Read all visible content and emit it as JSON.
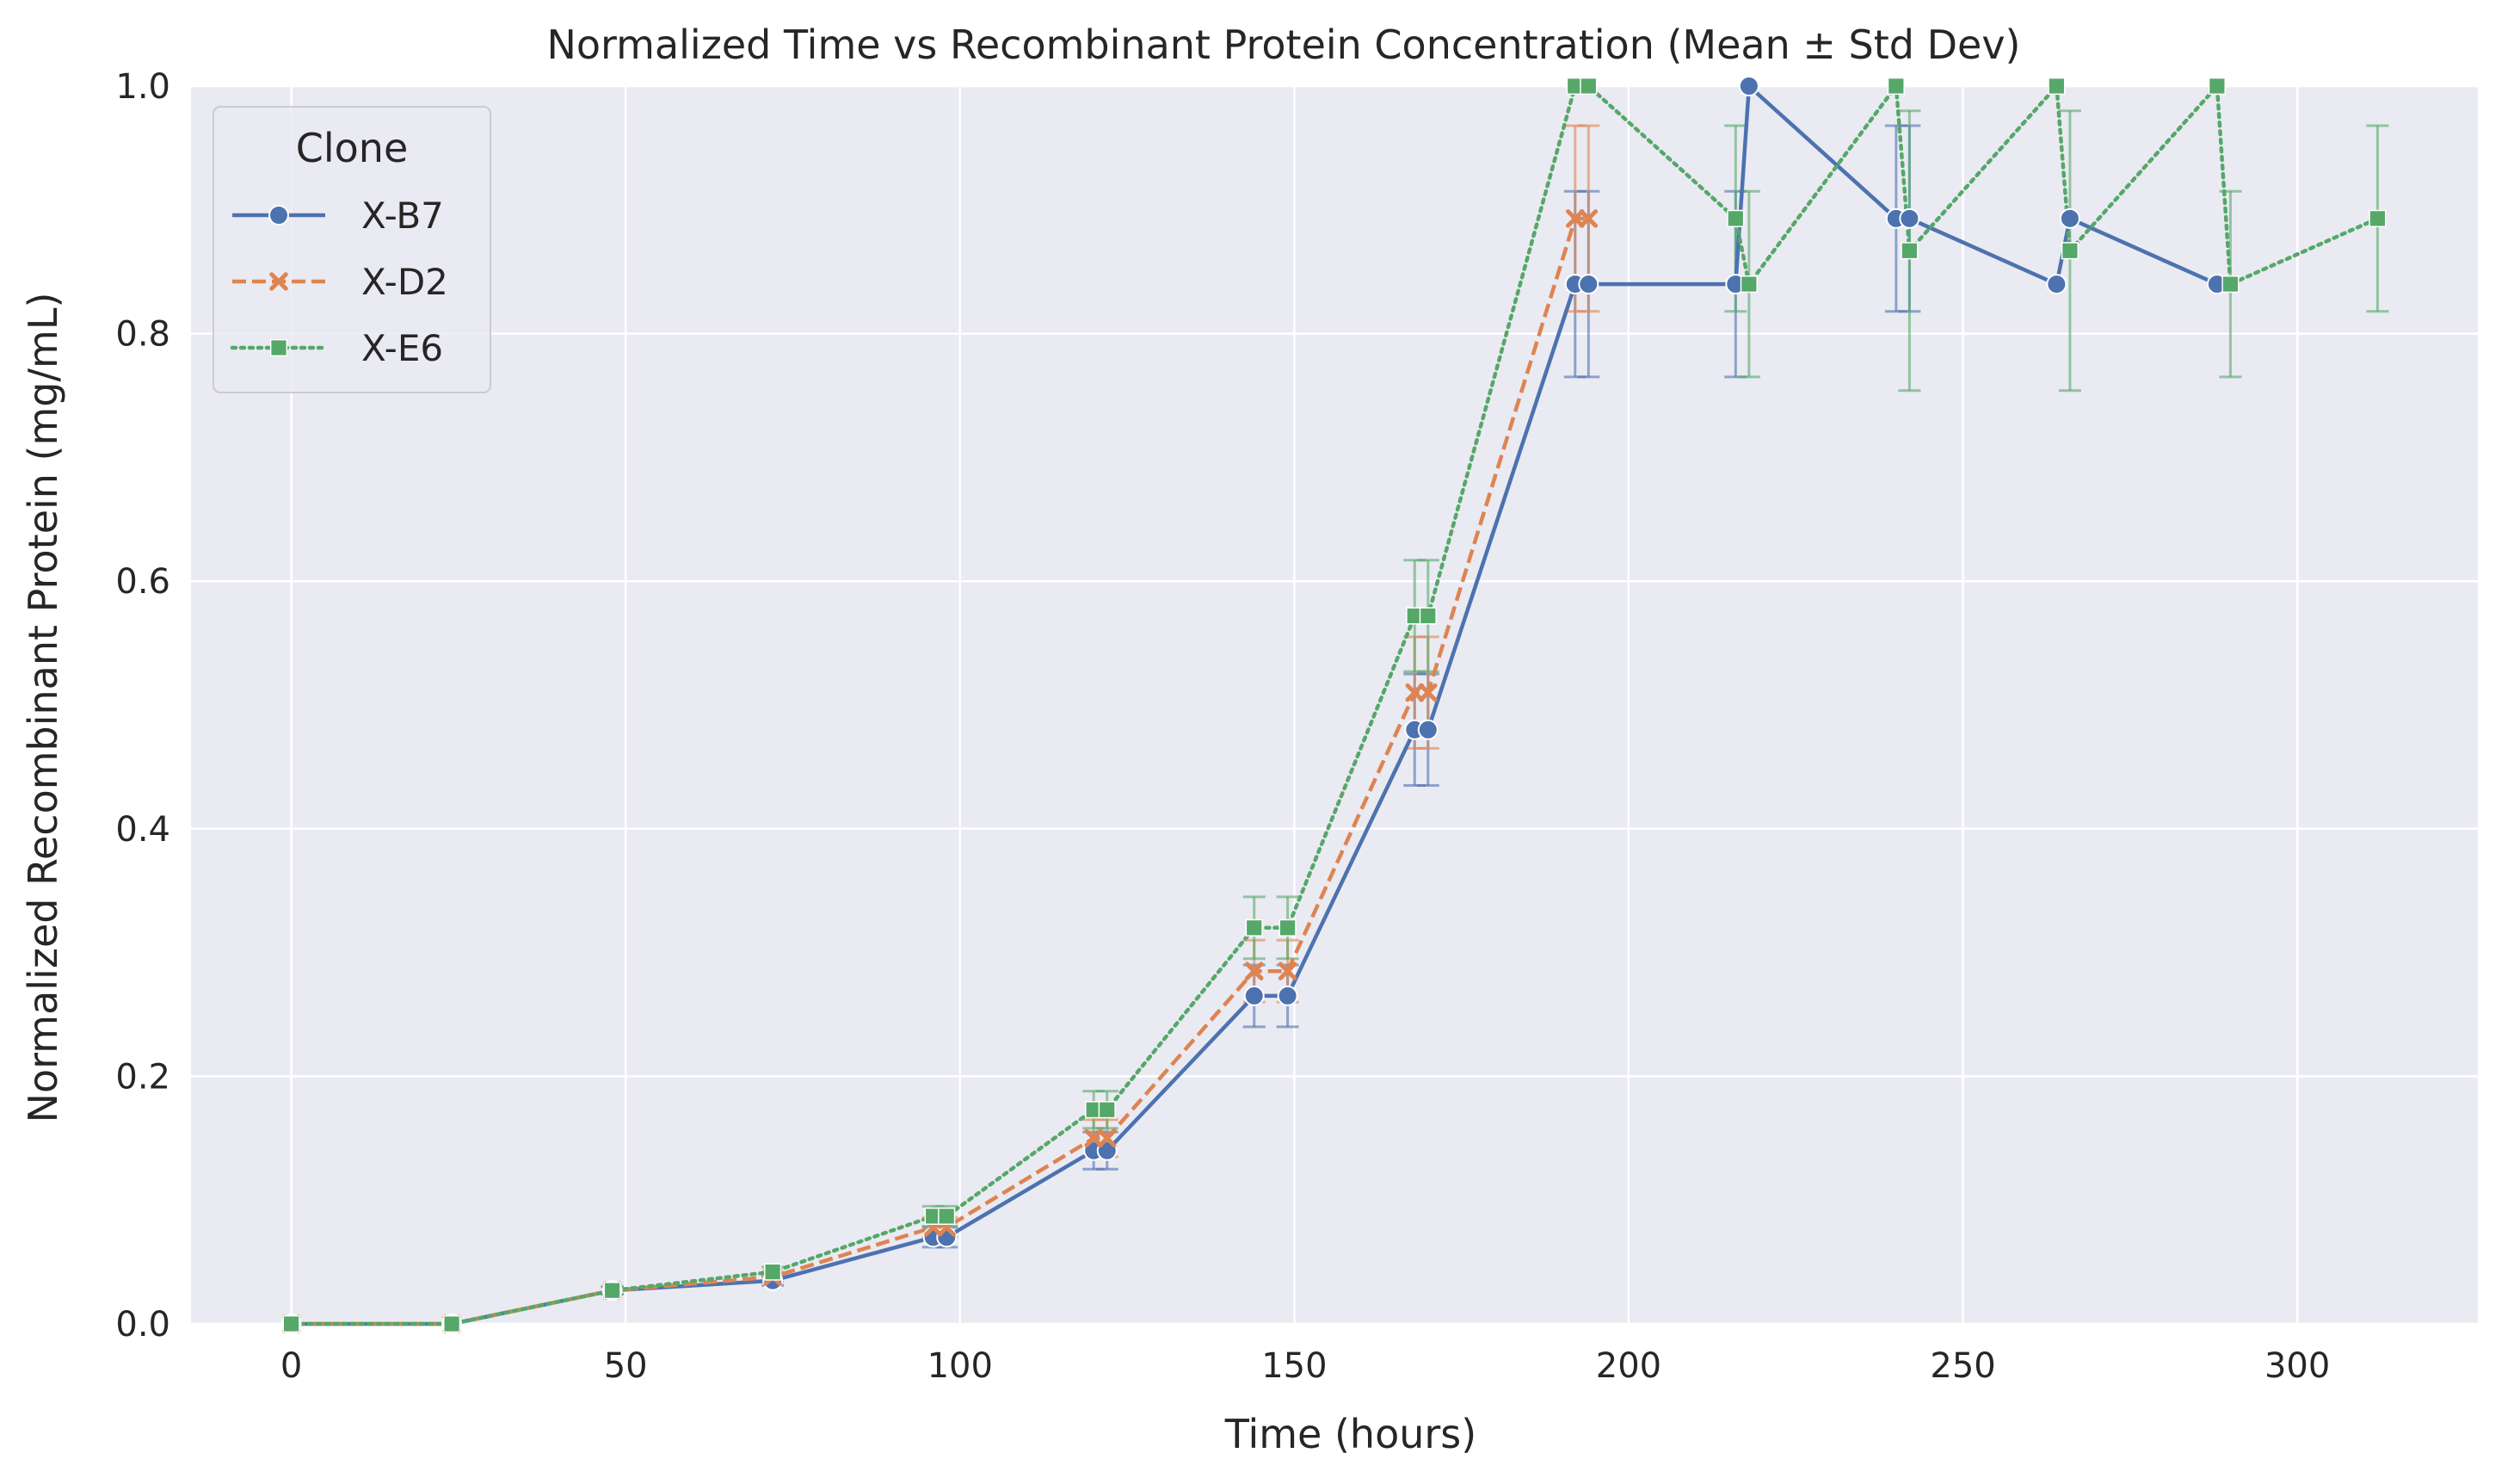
{
  "chart_data": {
    "type": "line",
    "title": "Normalized Time vs Recombinant Protein Concentration (Mean ± Std Dev)",
    "xlabel": "Time (hours)",
    "ylabel": "Normalized Recombinant Protein (mg/mL)",
    "xlim": [
      -15,
      327
    ],
    "ylim": [
      0,
      1.0
    ],
    "xticks": [
      0,
      50,
      100,
      150,
      200,
      250,
      300
    ],
    "yticks": [
      0.0,
      0.2,
      0.4,
      0.6,
      0.8,
      1.0
    ],
    "xtick_labels": [
      "0",
      "50",
      "100",
      "150",
      "200",
      "250",
      "300"
    ],
    "ytick_labels": [
      "0.0",
      "0.2",
      "0.4",
      "0.6",
      "0.8",
      "1.0"
    ],
    "grid": true,
    "legend": {
      "title": "Clone",
      "position": "top-left"
    },
    "error_bars": "std",
    "series": [
      {
        "name": "X-B7",
        "color": "#4C72B0",
        "marker": "circle",
        "linestyle": "solid",
        "x": [
          0,
          24,
          48,
          72,
          96,
          98,
          120,
          122,
          144,
          149,
          168,
          170,
          192,
          194,
          216,
          218,
          240,
          242,
          264,
          266,
          288
        ],
        "y": [
          0.0,
          0.0,
          0.027,
          0.035,
          0.07,
          0.07,
          0.14,
          0.14,
          0.265,
          0.265,
          0.48,
          0.48,
          0.84,
          0.84,
          0.84,
          1.0,
          0.893,
          0.893,
          0.84,
          0.893,
          0.84
        ],
        "err": [
          0,
          0,
          0.003,
          0.004,
          0.008,
          0.008,
          0.015,
          0.015,
          0.025,
          0.025,
          0.045,
          0.045,
          0.075,
          0.075,
          0.075,
          0.0,
          0.075,
          0.075,
          0.0,
          0.0,
          0.0
        ]
      },
      {
        "name": "X-D2",
        "color": "#DD8452",
        "marker": "x",
        "linestyle": "dashed",
        "x": [
          0,
          24,
          48,
          72,
          96,
          98,
          120,
          122,
          144,
          149,
          168,
          170,
          192,
          194
        ],
        "y": [
          0.0,
          0.0,
          0.027,
          0.038,
          0.078,
          0.078,
          0.15,
          0.15,
          0.285,
          0.285,
          0.51,
          0.51,
          0.893,
          0.893
        ],
        "err": [
          0,
          0,
          0.003,
          0.004,
          0.008,
          0.008,
          0.015,
          0.015,
          0.025,
          0.025,
          0.045,
          0.045,
          0.075,
          0.075
        ]
      },
      {
        "name": "X-E6",
        "color": "#55A868",
        "marker": "square",
        "linestyle": "dotted",
        "x": [
          0,
          24,
          48,
          72,
          96,
          98,
          120,
          122,
          144,
          149,
          168,
          170,
          192,
          194,
          216,
          218,
          240,
          242,
          264,
          266,
          288,
          290,
          312
        ],
        "y": [
          0.0,
          0.0,
          0.027,
          0.042,
          0.087,
          0.087,
          0.173,
          0.173,
          0.32,
          0.32,
          0.572,
          0.572,
          1.0,
          1.0,
          0.893,
          0.84,
          1.0,
          0.867,
          1.0,
          0.867,
          1.0,
          0.84,
          0.893
        ],
        "err": [
          0,
          0,
          0.003,
          0.004,
          0.008,
          0.008,
          0.015,
          0.015,
          0.025,
          0.025,
          0.045,
          0.045,
          0.0,
          0.0,
          0.075,
          0.075,
          0.0,
          0.113,
          0.0,
          0.113,
          0.0,
          0.075,
          0.075
        ]
      }
    ]
  }
}
